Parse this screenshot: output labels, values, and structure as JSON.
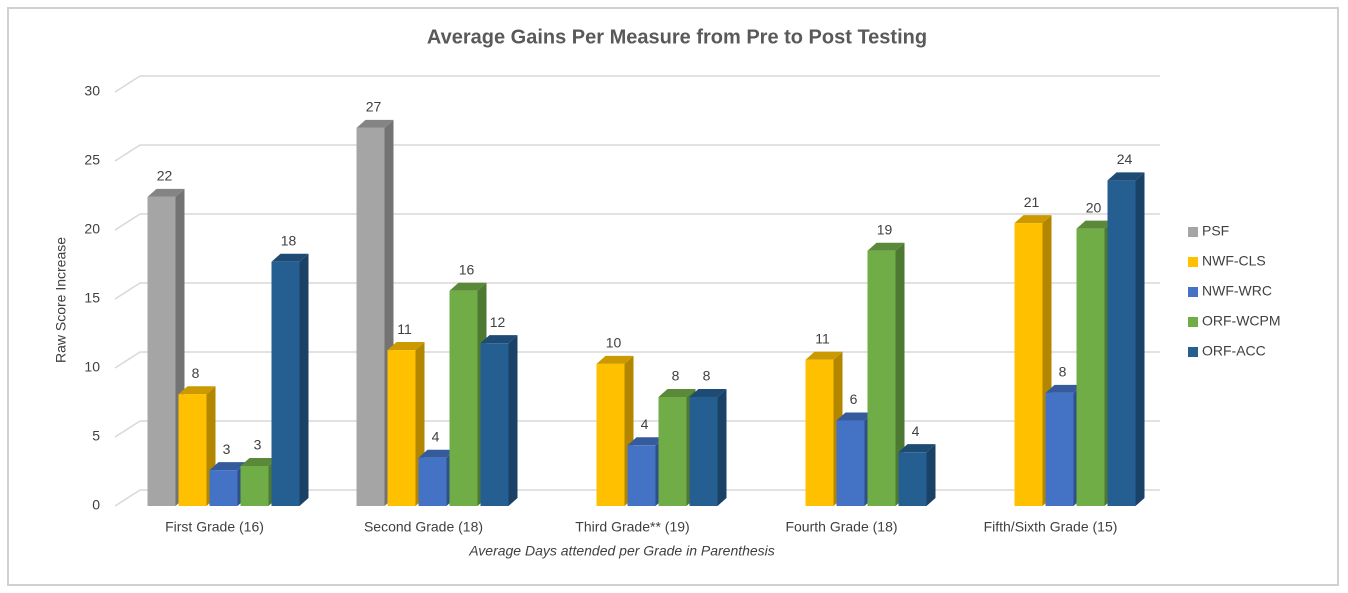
{
  "chart_data": {
    "type": "bar3d",
    "title": "Average Gains Per Measure from Pre to Post Testing",
    "y_label": "Raw Score Increase",
    "x_label": "Average Days attended per Grade in Parenthesis",
    "categories": [
      "First Grade (16)",
      "Second Grade (18)",
      "Third Grade** (19)",
      "Fourth Grade (18)",
      "Fifth/Sixth Grade (15)"
    ],
    "series": [
      {
        "name": "PSF",
        "color": "#a5a5a5",
        "values": [
          22.4,
          27.4,
          null,
          null,
          null
        ],
        "value_labels": [
          "22",
          "27",
          null,
          null,
          null
        ]
      },
      {
        "name": "NWF-CLS",
        "color": "#ffc000",
        "values": [
          8.1,
          11.3,
          10.3,
          10.6,
          20.5
        ],
        "value_labels": [
          "8",
          "11",
          "10",
          "11",
          "21"
        ]
      },
      {
        "name": "NWF-WRC",
        "color": "#4472c4",
        "values": [
          2.6,
          3.5,
          4.4,
          6.2,
          8.2
        ],
        "value_labels": [
          "3",
          "4",
          "4",
          "6",
          "8"
        ]
      },
      {
        "name": "ORF-WCPM",
        "color": "#70ad47",
        "values": [
          2.9,
          15.6,
          7.9,
          18.5,
          20.1
        ],
        "value_labels": [
          "3",
          "16",
          "8",
          "19",
          "20"
        ]
      },
      {
        "name": "ORF-ACC",
        "color": "#255e91",
        "values": [
          17.7,
          11.8,
          7.9,
          3.9,
          23.6
        ],
        "value_labels": [
          "18",
          "12",
          "8",
          "4",
          "24"
        ]
      }
    ],
    "ylim": [
      0,
      30
    ],
    "yticks": [
      0,
      5,
      10,
      15,
      20,
      25,
      30
    ],
    "grid": true,
    "legend": "right"
  }
}
